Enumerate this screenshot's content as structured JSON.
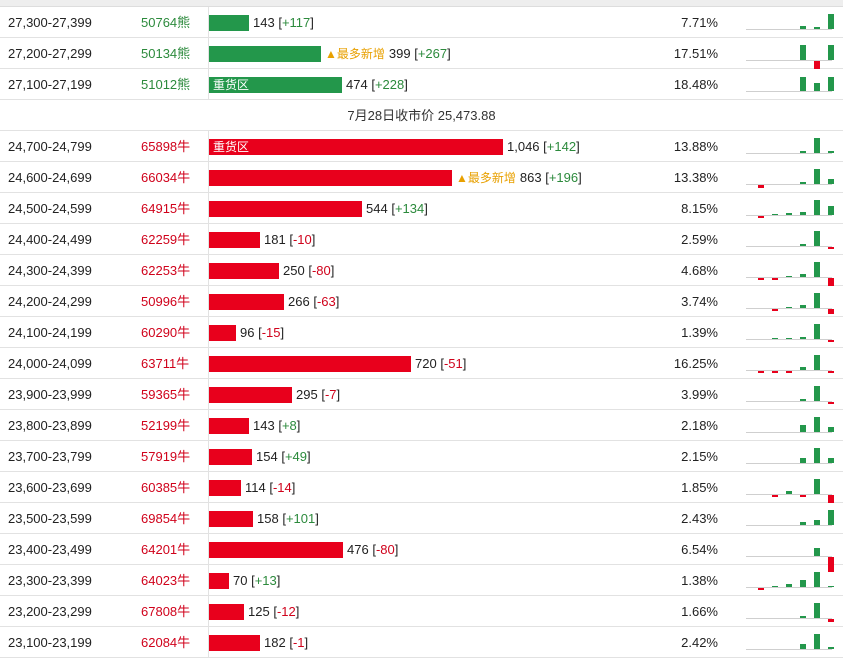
{
  "settlement": {
    "label": "7月28日收市价",
    "value": "25,473.88"
  },
  "colors": {
    "bull": "#23974b",
    "bear": "#e8001c",
    "new_mark": "#e8a000"
  },
  "upper_rows": [
    {
      "range": "27,300-27,399",
      "code": "50764熊",
      "side": "bear_contract",
      "volume": 143,
      "volume_text": "143",
      "change": "+117",
      "tag": "",
      "percent": "7.71%",
      "spark": [
        {
          "dir": "u",
          "v": 0
        },
        {
          "dir": "u",
          "v": 0
        },
        {
          "dir": "u",
          "v": 0
        },
        {
          "dir": "u",
          "v": 0
        },
        {
          "dir": "u",
          "v": 0.15
        },
        {
          "dir": "u",
          "v": 0.1
        },
        {
          "dir": "u",
          "v": 0.9
        }
      ]
    },
    {
      "range": "27,200-27,299",
      "code": "50134熊",
      "side": "bear_contract",
      "volume": 399,
      "volume_text": "399",
      "change": "+267",
      "tag": "最多新增",
      "percent": "17.51%",
      "spark": [
        {
          "dir": "u",
          "v": 0
        },
        {
          "dir": "u",
          "v": 0
        },
        {
          "dir": "u",
          "v": 0
        },
        {
          "dir": "u",
          "v": 0
        },
        {
          "dir": "u",
          "v": 0.9
        },
        {
          "dir": "d",
          "v": 0.45
        },
        {
          "dir": "u",
          "v": 0.9
        }
      ]
    },
    {
      "range": "27,100-27,199",
      "code": "51012熊",
      "side": "bear_contract",
      "volume": 474,
      "volume_text": "474",
      "change": "+228",
      "tag": "重货区",
      "percent": "18.48%",
      "spark": [
        {
          "dir": "u",
          "v": 0
        },
        {
          "dir": "u",
          "v": 0
        },
        {
          "dir": "u",
          "v": 0
        },
        {
          "dir": "u",
          "v": 0
        },
        {
          "dir": "u",
          "v": 0.85
        },
        {
          "dir": "u",
          "v": 0.45
        },
        {
          "dir": "u",
          "v": 0.85
        }
      ]
    }
  ],
  "lower_rows": [
    {
      "range": "24,700-24,799",
      "code": "65898牛",
      "volume": 1046,
      "volume_text": "1,046",
      "change": "+142",
      "tag": "重货区",
      "percent": "13.88%",
      "spark": [
        {
          "dir": "u",
          "v": 0
        },
        {
          "dir": "u",
          "v": 0
        },
        {
          "dir": "u",
          "v": 0
        },
        {
          "dir": "u",
          "v": 0
        },
        {
          "dir": "u",
          "v": 0.1
        },
        {
          "dir": "u",
          "v": 0.9
        },
        {
          "dir": "u",
          "v": 0.1
        }
      ]
    },
    {
      "range": "24,600-24,699",
      "code": "66034牛",
      "volume": 863,
      "volume_text": "863",
      "change": "+196",
      "tag": "最多新增",
      "percent": "13.38%",
      "spark": [
        {
          "dir": "u",
          "v": 0
        },
        {
          "dir": "d",
          "v": 0.15
        },
        {
          "dir": "u",
          "v": 0
        },
        {
          "dir": "u",
          "v": 0
        },
        {
          "dir": "u",
          "v": 0.1
        },
        {
          "dir": "u",
          "v": 0.9
        },
        {
          "dir": "u",
          "v": 0.3
        }
      ]
    },
    {
      "range": "24,500-24,599",
      "code": "64915牛",
      "volume": 544,
      "volume_text": "544",
      "change": "+134",
      "tag": "",
      "percent": "8.15%",
      "spark": [
        {
          "dir": "u",
          "v": 0
        },
        {
          "dir": "d",
          "v": 0.1
        },
        {
          "dir": "u",
          "v": 0.05
        },
        {
          "dir": "u",
          "v": 0.1
        },
        {
          "dir": "u",
          "v": 0.15
        },
        {
          "dir": "u",
          "v": 0.9
        },
        {
          "dir": "u",
          "v": 0.5
        }
      ]
    },
    {
      "range": "24,400-24,499",
      "code": "62259牛",
      "volume": 181,
      "volume_text": "181",
      "change": "-10",
      "tag": "",
      "percent": "2.59%",
      "spark": [
        {
          "dir": "u",
          "v": 0
        },
        {
          "dir": "u",
          "v": 0
        },
        {
          "dir": "u",
          "v": 0
        },
        {
          "dir": "u",
          "v": 0
        },
        {
          "dir": "u",
          "v": 0.1
        },
        {
          "dir": "u",
          "v": 0.9
        },
        {
          "dir": "d",
          "v": 0.1
        }
      ]
    },
    {
      "range": "24,300-24,399",
      "code": "62253牛",
      "volume": 250,
      "volume_text": "250",
      "change": "-80",
      "tag": "",
      "percent": "4.68%",
      "spark": [
        {
          "dir": "u",
          "v": 0
        },
        {
          "dir": "d",
          "v": 0.1
        },
        {
          "dir": "d",
          "v": 0.1
        },
        {
          "dir": "u",
          "v": 0.05
        },
        {
          "dir": "u",
          "v": 0.2
        },
        {
          "dir": "u",
          "v": 0.9
        },
        {
          "dir": "d",
          "v": 0.45
        }
      ]
    },
    {
      "range": "24,200-24,299",
      "code": "50996牛",
      "volume": 266,
      "volume_text": "266",
      "change": "-63",
      "tag": "",
      "percent": "3.74%",
      "spark": [
        {
          "dir": "u",
          "v": 0
        },
        {
          "dir": "u",
          "v": 0
        },
        {
          "dir": "d",
          "v": 0.1
        },
        {
          "dir": "u",
          "v": 0.05
        },
        {
          "dir": "u",
          "v": 0.15
        },
        {
          "dir": "u",
          "v": 0.9
        },
        {
          "dir": "d",
          "v": 0.3
        }
      ]
    },
    {
      "range": "24,100-24,199",
      "code": "60290牛",
      "volume": 96,
      "volume_text": "96",
      "change": "-15",
      "tag": "",
      "percent": "1.39%",
      "spark": [
        {
          "dir": "u",
          "v": 0
        },
        {
          "dir": "u",
          "v": 0
        },
        {
          "dir": "u",
          "v": 0.05
        },
        {
          "dir": "u",
          "v": 0.05
        },
        {
          "dir": "u",
          "v": 0.1
        },
        {
          "dir": "u",
          "v": 0.9
        },
        {
          "dir": "d",
          "v": 0.1
        }
      ]
    },
    {
      "range": "24,000-24,099",
      "code": "63711牛",
      "volume": 720,
      "volume_text": "720",
      "change": "-51",
      "tag": "",
      "percent": "16.25%",
      "spark": [
        {
          "dir": "u",
          "v": 0
        },
        {
          "dir": "d",
          "v": 0.1
        },
        {
          "dir": "d",
          "v": 0.1
        },
        {
          "dir": "d",
          "v": 0.1
        },
        {
          "dir": "u",
          "v": 0.2
        },
        {
          "dir": "u",
          "v": 0.9
        },
        {
          "dir": "d",
          "v": 0.1
        }
      ]
    },
    {
      "range": "23,900-23,999",
      "code": "59365牛",
      "volume": 295,
      "volume_text": "295",
      "change": "-7",
      "tag": "",
      "percent": "3.99%",
      "spark": [
        {
          "dir": "u",
          "v": 0
        },
        {
          "dir": "u",
          "v": 0
        },
        {
          "dir": "u",
          "v": 0
        },
        {
          "dir": "u",
          "v": 0
        },
        {
          "dir": "u",
          "v": 0.1
        },
        {
          "dir": "u",
          "v": 0.9
        },
        {
          "dir": "d",
          "v": 0.1
        }
      ]
    },
    {
      "range": "23,800-23,899",
      "code": "52199牛",
      "volume": 143,
      "volume_text": "143",
      "change": "+8",
      "tag": "",
      "percent": "2.18%",
      "spark": [
        {
          "dir": "u",
          "v": 0
        },
        {
          "dir": "u",
          "v": 0
        },
        {
          "dir": "u",
          "v": 0
        },
        {
          "dir": "u",
          "v": 0
        },
        {
          "dir": "u",
          "v": 0.4
        },
        {
          "dir": "u",
          "v": 0.9
        },
        {
          "dir": "u",
          "v": 0.3
        }
      ]
    },
    {
      "range": "23,700-23,799",
      "code": "57919牛",
      "volume": 154,
      "volume_text": "154",
      "change": "+49",
      "tag": "",
      "percent": "2.15%",
      "spark": [
        {
          "dir": "u",
          "v": 0
        },
        {
          "dir": "u",
          "v": 0
        },
        {
          "dir": "u",
          "v": 0
        },
        {
          "dir": "u",
          "v": 0
        },
        {
          "dir": "u",
          "v": 0.3
        },
        {
          "dir": "u",
          "v": 0.9
        },
        {
          "dir": "u",
          "v": 0.3
        }
      ]
    },
    {
      "range": "23,600-23,699",
      "code": "60385牛",
      "volume": 114,
      "volume_text": "114",
      "change": "-14",
      "tag": "",
      "percent": "1.85%",
      "spark": [
        {
          "dir": "u",
          "v": 0
        },
        {
          "dir": "u",
          "v": 0
        },
        {
          "dir": "d",
          "v": 0.1
        },
        {
          "dir": "u",
          "v": 0.15
        },
        {
          "dir": "d",
          "v": 0.1
        },
        {
          "dir": "u",
          "v": 0.9
        },
        {
          "dir": "d",
          "v": 0.45
        }
      ]
    },
    {
      "range": "23,500-23,599",
      "code": "69854牛",
      "volume": 158,
      "volume_text": "158",
      "change": "+101",
      "tag": "",
      "percent": "2.43%",
      "spark": [
        {
          "dir": "u",
          "v": 0
        },
        {
          "dir": "u",
          "v": 0
        },
        {
          "dir": "u",
          "v": 0
        },
        {
          "dir": "u",
          "v": 0
        },
        {
          "dir": "u",
          "v": 0.2
        },
        {
          "dir": "u",
          "v": 0.3
        },
        {
          "dir": "u",
          "v": 0.9
        }
      ]
    },
    {
      "range": "23,400-23,499",
      "code": "64201牛",
      "volume": 476,
      "volume_text": "476",
      "change": "-80",
      "tag": "",
      "percent": "6.54%",
      "spark": [
        {
          "dir": "u",
          "v": 0
        },
        {
          "dir": "u",
          "v": 0
        },
        {
          "dir": "u",
          "v": 0
        },
        {
          "dir": "u",
          "v": 0
        },
        {
          "dir": "u",
          "v": 0
        },
        {
          "dir": "u",
          "v": 0.45
        },
        {
          "dir": "d",
          "v": 0.9
        }
      ]
    },
    {
      "range": "23,300-23,399",
      "code": "64023牛",
      "volume": 70,
      "volume_text": "70",
      "change": "+13",
      "tag": "",
      "percent": "1.38%",
      "spark": [
        {
          "dir": "u",
          "v": 0
        },
        {
          "dir": "d",
          "v": 0.1
        },
        {
          "dir": "u",
          "v": 0.05
        },
        {
          "dir": "u",
          "v": 0.2
        },
        {
          "dir": "u",
          "v": 0.4
        },
        {
          "dir": "u",
          "v": 0.9
        },
        {
          "dir": "u",
          "v": 0.05
        }
      ]
    },
    {
      "range": "23,200-23,299",
      "code": "67808牛",
      "volume": 125,
      "volume_text": "125",
      "change": "-12",
      "tag": "",
      "percent": "1.66%",
      "spark": [
        {
          "dir": "u",
          "v": 0
        },
        {
          "dir": "u",
          "v": 0
        },
        {
          "dir": "u",
          "v": 0
        },
        {
          "dir": "u",
          "v": 0
        },
        {
          "dir": "u",
          "v": 0.1
        },
        {
          "dir": "u",
          "v": 0.9
        },
        {
          "dir": "d",
          "v": 0.2
        }
      ]
    },
    {
      "range": "23,100-23,199",
      "code": "62084牛",
      "volume": 182,
      "volume_text": "182",
      "change": "-1",
      "tag": "",
      "percent": "2.42%",
      "spark": [
        {
          "dir": "u",
          "v": 0
        },
        {
          "dir": "u",
          "v": 0
        },
        {
          "dir": "u",
          "v": 0
        },
        {
          "dir": "u",
          "v": 0
        },
        {
          "dir": "u",
          "v": 0.3
        },
        {
          "dir": "u",
          "v": 0.9
        },
        {
          "dir": "u",
          "v": 0.1
        }
      ]
    }
  ]
}
